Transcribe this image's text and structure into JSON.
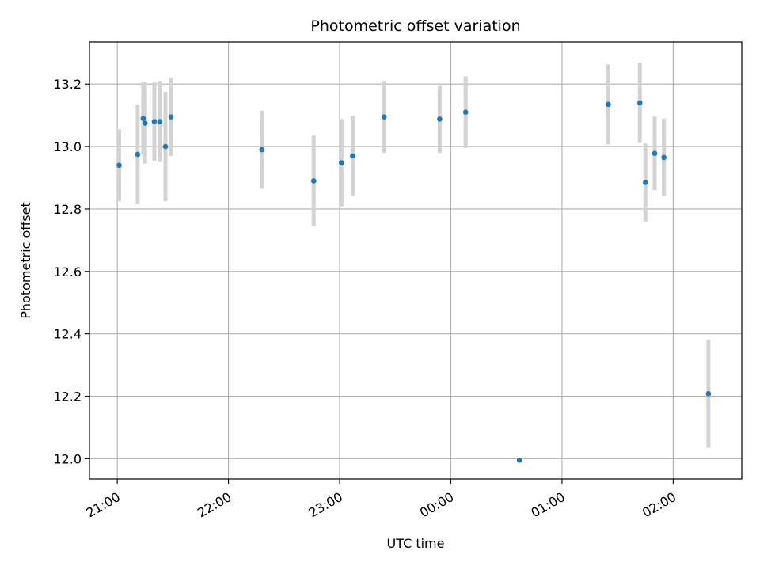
{
  "chart_data": {
    "type": "scatter",
    "title": "Photometric offset variation",
    "xlabel": "UTC time",
    "ylabel": "Photometric offset",
    "grid": true,
    "x_axis": {
      "kind": "time",
      "start": "2024-01-01T20:45:00",
      "end": "2024-01-02T02:37:00",
      "ticks": [
        {
          "t": "2024-01-01T21:00:00",
          "label": "21:00"
        },
        {
          "t": "2024-01-01T22:00:00",
          "label": "22:00"
        },
        {
          "t": "2024-01-01T23:00:00",
          "label": "23:00"
        },
        {
          "t": "2024-01-02T00:00:00",
          "label": "00:00"
        },
        {
          "t": "2024-01-02T01:00:00",
          "label": "01:00"
        },
        {
          "t": "2024-01-02T02:00:00",
          "label": "02:00"
        }
      ]
    },
    "ylim": [
      11.935,
      13.335
    ],
    "y_ticks": [
      {
        "v": 12.0,
        "label": "12.0"
      },
      {
        "v": 12.2,
        "label": "12.2"
      },
      {
        "v": 12.4,
        "label": "12.4"
      },
      {
        "v": 12.6,
        "label": "12.6"
      },
      {
        "v": 12.8,
        "label": "12.8"
      },
      {
        "v": 13.0,
        "label": "13.0"
      },
      {
        "v": 13.2,
        "label": "13.2"
      }
    ],
    "colors": {
      "point": "#1f77b4",
      "errorbar": "#d3d3d3",
      "grid": "#b0b0b0"
    },
    "points": [
      {
        "t": "2024-01-01T21:01:00",
        "y": 12.94,
        "err": 0.115
      },
      {
        "t": "2024-01-01T21:11:00",
        "y": 12.975,
        "err": 0.16
      },
      {
        "t": "2024-01-01T21:14:00",
        "y": 13.09,
        "err": 0.115
      },
      {
        "t": "2024-01-01T21:15:00",
        "y": 13.075,
        "err": 0.13
      },
      {
        "t": "2024-01-01T21:20:00",
        "y": 13.08,
        "err": 0.125
      },
      {
        "t": "2024-01-01T21:23:00",
        "y": 13.08,
        "err": 0.13
      },
      {
        "t": "2024-01-01T21:26:00",
        "y": 13.0,
        "err": 0.175
      },
      {
        "t": "2024-01-01T21:29:00",
        "y": 13.095,
        "err": 0.125
      },
      {
        "t": "2024-01-01T22:18:00",
        "y": 12.99,
        "err": 0.125
      },
      {
        "t": "2024-01-01T22:46:00",
        "y": 12.89,
        "err": 0.145
      },
      {
        "t": "2024-01-01T23:01:00",
        "y": 12.948,
        "err": 0.14
      },
      {
        "t": "2024-01-01T23:07:00",
        "y": 12.97,
        "err": 0.128
      },
      {
        "t": "2024-01-01T23:24:00",
        "y": 13.095,
        "err": 0.115
      },
      {
        "t": "2024-01-01T23:54:00",
        "y": 13.088,
        "err": 0.108
      },
      {
        "t": "2024-01-02T00:08:00",
        "y": 13.11,
        "err": 0.115
      },
      {
        "t": "2024-01-02T00:37:00",
        "y": 11.995,
        "err": 0.0
      },
      {
        "t": "2024-01-02T01:25:00",
        "y": 13.135,
        "err": 0.128
      },
      {
        "t": "2024-01-02T01:42:00",
        "y": 13.14,
        "err": 0.128
      },
      {
        "t": "2024-01-02T01:45:00",
        "y": 12.885,
        "err": 0.125
      },
      {
        "t": "2024-01-02T01:50:00",
        "y": 12.978,
        "err": 0.118
      },
      {
        "t": "2024-01-02T01:55:00",
        "y": 12.965,
        "err": 0.125
      },
      {
        "t": "2024-01-02T02:19:00",
        "y": 12.208,
        "err": 0.173
      }
    ]
  }
}
